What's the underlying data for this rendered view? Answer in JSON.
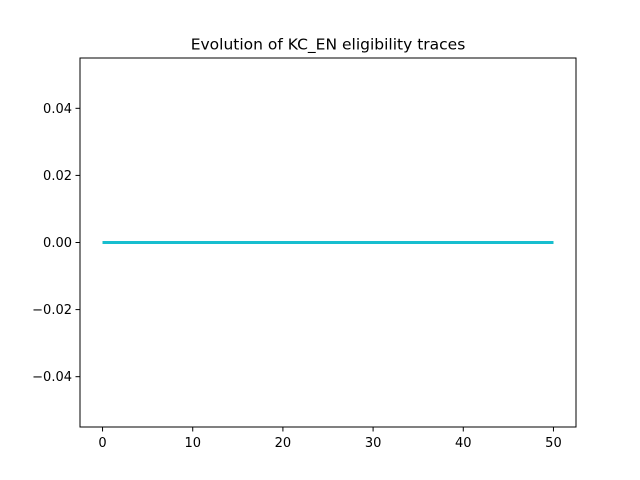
{
  "chart_data": {
    "type": "line",
    "title": "Evolution of KC_EN eligibility traces",
    "xlabel": "",
    "ylabel": "",
    "xlim": [
      -2.5,
      52.5
    ],
    "ylim": [
      -0.055,
      0.055
    ],
    "xticks": [
      0,
      10,
      20,
      30,
      40,
      50
    ],
    "xtick_labels": [
      "0",
      "10",
      "20",
      "30",
      "40",
      "50"
    ],
    "yticks": [
      0.04,
      0.02,
      0.0,
      -0.02,
      -0.04
    ],
    "ytick_labels": [
      "0.04",
      "0.02",
      "0.00",
      "−0.02",
      "−0.04"
    ],
    "grid": false,
    "series": [
      {
        "color": "#1f77b4",
        "x": [
          0,
          50
        ],
        "y": [
          0,
          0
        ]
      },
      {
        "color": "#ff7f0e",
        "x": [
          0,
          50
        ],
        "y": [
          0,
          0
        ]
      },
      {
        "color": "#2ca02c",
        "x": [
          0,
          50
        ],
        "y": [
          0,
          0
        ]
      },
      {
        "color": "#d62728",
        "x": [
          0,
          50
        ],
        "y": [
          0,
          0
        ]
      },
      {
        "color": "#9467bd",
        "x": [
          0,
          50
        ],
        "y": [
          0,
          0
        ]
      },
      {
        "color": "#8c564b",
        "x": [
          0,
          50
        ],
        "y": [
          0,
          0
        ]
      },
      {
        "color": "#e377c2",
        "x": [
          0,
          50
        ],
        "y": [
          0,
          0
        ]
      },
      {
        "color": "#7f7f7f",
        "x": [
          0,
          50
        ],
        "y": [
          0,
          0
        ]
      },
      {
        "color": "#bcbd22",
        "x": [
          0,
          50
        ],
        "y": [
          0,
          0
        ]
      },
      {
        "color": "#17becf",
        "x": [
          0,
          50
        ],
        "y": [
          0,
          0
        ]
      }
    ]
  }
}
